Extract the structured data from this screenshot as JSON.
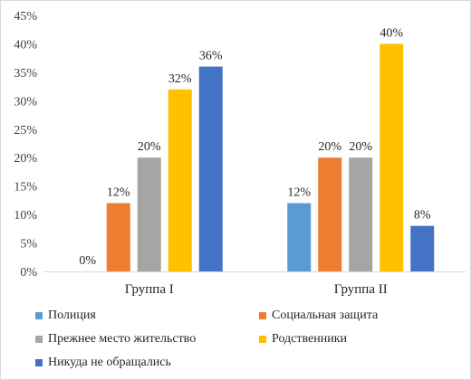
{
  "chart_data": {
    "type": "bar",
    "categories": [
      "Группа I",
      "Группа II"
    ],
    "series": [
      {
        "name": "Полиция",
        "values": [
          0,
          12
        ],
        "color": "#5B9BD5"
      },
      {
        "name": "Социальная защита",
        "values": [
          12,
          20
        ],
        "color": "#ED7D31"
      },
      {
        "name": "Прежнее место жительство",
        "values": [
          20,
          20
        ],
        "color": "#A5A5A5"
      },
      {
        "name": "Родственники",
        "values": [
          32,
          40
        ],
        "color": "#FFC000"
      },
      {
        "name": "Никуда не обращались",
        "values": [
          36,
          8
        ],
        "color": "#4472C4"
      }
    ],
    "data_labels": [
      [
        "0%",
        "12%",
        "20%",
        "32%",
        "36%"
      ],
      [
        "12%",
        "20%",
        "20%",
        "40%",
        "8%"
      ]
    ],
    "y_ticks": [
      "0%",
      "5%",
      "10%",
      "15%",
      "20%",
      "25%",
      "30%",
      "35%",
      "40%",
      "45%"
    ],
    "ylim": [
      0,
      45
    ],
    "grid": false,
    "legend_position": "bottom"
  }
}
